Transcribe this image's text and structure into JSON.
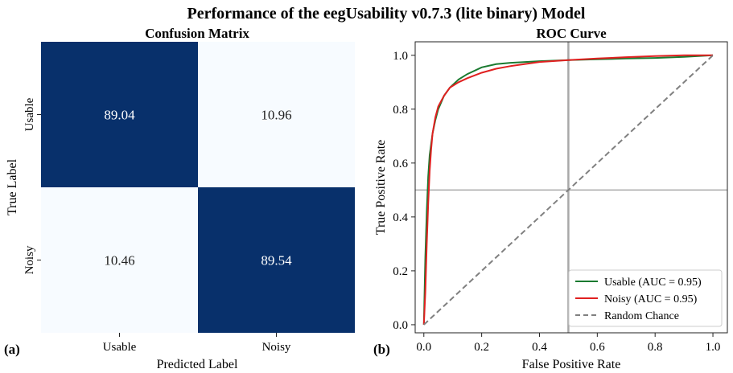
{
  "figure": {
    "title": "Performance of the eegUsability v0.7.3 (lite binary) Model",
    "panel_a": "(a)",
    "panel_b": "(b)"
  },
  "chart_data": [
    {
      "type": "heatmap",
      "title": "Confusion Matrix",
      "xlabel": "Predicted Label",
      "ylabel": "True Label",
      "x_categories": [
        "Usable",
        "Noisy"
      ],
      "y_categories": [
        "Usable",
        "Noisy"
      ],
      "values": [
        [
          "89.04",
          "10.96"
        ],
        [
          "10.46",
          "89.54"
        ]
      ],
      "colors": {
        "high": "#08306b",
        "low": "#f7fbff",
        "high_text": "#ffffff",
        "low_text": "#222222"
      }
    },
    {
      "type": "line",
      "title": "ROC Curve",
      "xlabel": "False Positive Rate",
      "ylabel": "True Positive Rate",
      "xlim": [
        -0.03,
        1.05
      ],
      "ylim": [
        -0.03,
        1.05
      ],
      "xticks": [
        "0.0",
        "0.2",
        "0.4",
        "0.6",
        "0.8",
        "1.0"
      ],
      "yticks": [
        "0.0",
        "0.2",
        "0.4",
        "0.6",
        "0.8",
        "1.0"
      ],
      "xtick_values": [
        0,
        0.2,
        0.4,
        0.6,
        0.8,
        1.0
      ],
      "ytick_values": [
        0,
        0.2,
        0.4,
        0.6,
        0.8,
        1.0
      ],
      "reference_lines": {
        "vertical_x": 0.5,
        "horizontal_y": 0.5
      },
      "legend_position": "bottom-right",
      "series": [
        {
          "name": "Usable (AUC = 0.95)",
          "color": "#1a7a30",
          "style": "solid",
          "x": [
            0,
            0.005,
            0.01,
            0.015,
            0.02,
            0.03,
            0.04,
            0.05,
            0.07,
            0.09,
            0.12,
            0.15,
            0.2,
            0.25,
            0.3,
            0.4,
            0.5,
            0.6,
            0.7,
            0.8,
            0.9,
            1.0
          ],
          "y": [
            0,
            0.25,
            0.42,
            0.55,
            0.63,
            0.71,
            0.76,
            0.8,
            0.85,
            0.88,
            0.91,
            0.93,
            0.955,
            0.967,
            0.972,
            0.978,
            0.982,
            0.985,
            0.988,
            0.99,
            0.994,
            1.0
          ]
        },
        {
          "name": "Noisy (AUC = 0.95)",
          "color": "#e02020",
          "style": "solid",
          "x": [
            0,
            0.005,
            0.01,
            0.015,
            0.02,
            0.025,
            0.03,
            0.04,
            0.05,
            0.07,
            0.09,
            0.12,
            0.15,
            0.2,
            0.25,
            0.3,
            0.4,
            0.5,
            0.6,
            0.7,
            0.8,
            0.9,
            1.0
          ],
          "y": [
            0,
            0.12,
            0.3,
            0.45,
            0.57,
            0.65,
            0.71,
            0.77,
            0.81,
            0.85,
            0.88,
            0.9,
            0.915,
            0.935,
            0.95,
            0.96,
            0.975,
            0.982,
            0.988,
            0.993,
            0.997,
            1.0,
            1.0
          ]
        },
        {
          "name": "Random Chance",
          "color": "#808080",
          "style": "dashed",
          "x": [
            0,
            1
          ],
          "y": [
            0,
            1
          ]
        }
      ]
    }
  ]
}
